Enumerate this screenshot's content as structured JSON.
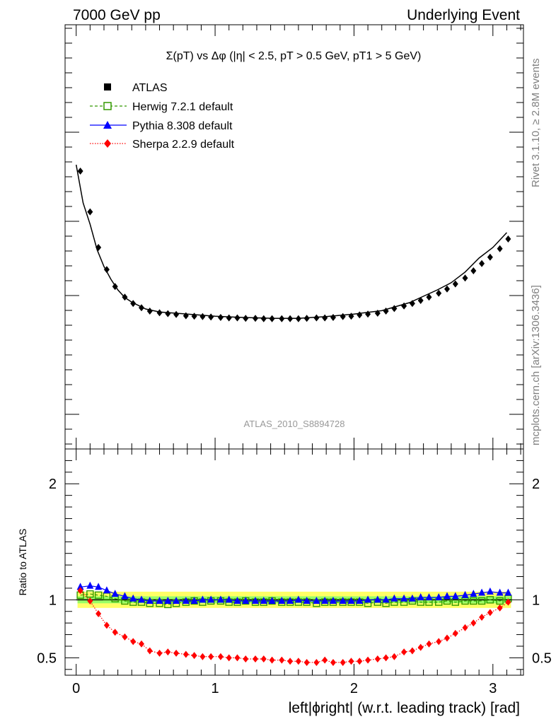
{
  "header": {
    "left": "7000 GeV pp",
    "right": "Underlying Event"
  },
  "side": {
    "rivet": "Rivet 3.1.10, ≥ 2.8M events",
    "mcplots": "mcplots.cern.ch [arXiv:1306.3436]"
  },
  "chart_data": [
    {
      "type": "scatter",
      "title": "Σ(pT) vs Δφ (|η| < 2.5, pT > 0.5 GeV, pT1 > 5 GeV)",
      "watermark": "ATLAS_2010_S8894728",
      "xlim": [
        -0.08,
        3.22
      ],
      "ylim": [
        0,
        1
      ],
      "y_tick_labels_shown": false,
      "legend": [
        "ATLAS",
        "Herwig 7.2.1 default",
        "Pythia 8.308 default",
        "Sherpa 2.2.9 default"
      ],
      "legend_position": "top-left",
      "series": [
        {
          "name": "ATLAS",
          "marker": "diamond",
          "color": "#000000",
          "x": [
            0.03,
            0.1,
            0.16,
            0.22,
            0.28,
            0.35,
            0.41,
            0.47,
            0.53,
            0.6,
            0.66,
            0.72,
            0.79,
            0.85,
            0.91,
            0.97,
            1.04,
            1.1,
            1.16,
            1.22,
            1.29,
            1.35,
            1.41,
            1.48,
            1.54,
            1.6,
            1.66,
            1.73,
            1.79,
            1.85,
            1.92,
            1.98,
            2.04,
            2.1,
            2.17,
            2.23,
            2.29,
            2.36,
            2.42,
            2.48,
            2.54,
            2.61,
            2.67,
            2.73,
            2.8,
            2.86,
            2.92,
            2.98,
            3.05,
            3.11
          ],
          "y": [
            0.655,
            0.559,
            0.475,
            0.423,
            0.383,
            0.358,
            0.343,
            0.333,
            0.325,
            0.321,
            0.319,
            0.317,
            0.314,
            0.313,
            0.312,
            0.311,
            0.31,
            0.309,
            0.309,
            0.308,
            0.308,
            0.307,
            0.307,
            0.307,
            0.307,
            0.307,
            0.308,
            0.309,
            0.309,
            0.31,
            0.312,
            0.313,
            0.316,
            0.318,
            0.32,
            0.325,
            0.331,
            0.337,
            0.343,
            0.35,
            0.358,
            0.367,
            0.377,
            0.389,
            0.403,
            0.42,
            0.437,
            0.452,
            0.472,
            0.495
          ]
        },
        {
          "name": "Pythia 8.308 default",
          "marker": "line",
          "color": "#000000",
          "x": [
            0.0,
            0.05,
            0.1,
            0.15,
            0.2,
            0.25,
            0.3,
            0.35,
            0.4,
            0.45,
            0.5,
            0.6,
            0.8,
            1.0,
            1.2,
            1.4,
            1.6,
            1.8,
            2.0,
            2.2,
            2.4,
            2.5,
            2.6,
            2.7,
            2.8,
            2.9,
            3.0,
            3.1
          ],
          "y": [
            0.67,
            0.58,
            0.53,
            0.47,
            0.43,
            0.4,
            0.375,
            0.357,
            0.346,
            0.338,
            0.33,
            0.323,
            0.318,
            0.313,
            0.31,
            0.308,
            0.308,
            0.312,
            0.318,
            0.326,
            0.345,
            0.36,
            0.375,
            0.392,
            0.417,
            0.45,
            0.475,
            0.51
          ]
        }
      ]
    },
    {
      "type": "scatter",
      "ylabel": "Ratio to ATLAS",
      "xlabel": "left|ϕright| (w.r.t. leading track) [rad]",
      "xlim": [
        -0.08,
        3.22
      ],
      "ylim": [
        0.35,
        2.3
      ],
      "x_ticks": [
        0,
        1,
        2,
        3
      ],
      "y_ticks": [
        0.5,
        1,
        2
      ],
      "reference_line": 1,
      "bands": [
        {
          "name": "outer",
          "low": 0.93,
          "high": 1.07,
          "color": "#ffff66"
        },
        {
          "name": "inner",
          "low": 0.97,
          "high": 1.03,
          "color": "#99ff66"
        }
      ],
      "series": [
        {
          "name": "Herwig 7.2.1 default",
          "marker": "open-square",
          "line": "dashed",
          "color": "#339900",
          "x": [
            0.03,
            0.1,
            0.16,
            0.22,
            0.28,
            0.35,
            0.41,
            0.47,
            0.53,
            0.6,
            0.66,
            0.72,
            0.79,
            0.85,
            0.91,
            0.97,
            1.04,
            1.1,
            1.16,
            1.22,
            1.29,
            1.35,
            1.41,
            1.48,
            1.54,
            1.6,
            1.66,
            1.73,
            1.79,
            1.85,
            1.92,
            1.98,
            2.04,
            2.1,
            2.17,
            2.23,
            2.29,
            2.36,
            2.42,
            2.48,
            2.54,
            2.61,
            2.67,
            2.73,
            2.8,
            2.86,
            2.92,
            2.98,
            3.05,
            3.11
          ],
          "y": [
            1.04,
            1.05,
            1.04,
            1.03,
            1.01,
            0.99,
            0.98,
            0.98,
            0.97,
            0.97,
            0.96,
            0.97,
            0.98,
            0.99,
            0.98,
            0.99,
            0.99,
            0.98,
            0.98,
            0.99,
            0.98,
            0.98,
            0.99,
            0.98,
            0.98,
            0.98,
            0.98,
            0.97,
            0.98,
            0.98,
            0.98,
            0.98,
            0.98,
            0.97,
            0.98,
            0.97,
            0.98,
            0.98,
            0.99,
            0.98,
            0.98,
            0.98,
            0.99,
            0.98,
            0.99,
            0.99,
            0.99,
            1.0,
            0.99,
            1.01
          ]
        },
        {
          "name": "Pythia 8.308 default",
          "marker": "triangle",
          "line": "solid",
          "color": "#0000ff",
          "x": [
            0.03,
            0.1,
            0.16,
            0.22,
            0.28,
            0.35,
            0.41,
            0.47,
            0.53,
            0.6,
            0.66,
            0.72,
            0.79,
            0.85,
            0.91,
            0.97,
            1.04,
            1.1,
            1.16,
            1.22,
            1.29,
            1.35,
            1.41,
            1.48,
            1.54,
            1.6,
            1.66,
            1.73,
            1.79,
            1.85,
            1.92,
            1.98,
            2.04,
            2.1,
            2.17,
            2.23,
            2.29,
            2.36,
            2.42,
            2.48,
            2.54,
            2.61,
            2.67,
            2.73,
            2.8,
            2.86,
            2.92,
            2.98,
            3.05,
            3.11
          ],
          "y": [
            1.11,
            1.12,
            1.11,
            1.08,
            1.05,
            1.03,
            1.01,
            1.0,
            0.99,
            0.99,
            0.99,
            0.99,
            0.99,
            0.99,
            1.0,
            1.0,
            1.0,
            1.0,
            0.99,
            0.99,
            0.99,
            0.99,
            0.99,
            0.99,
            0.99,
            1.0,
            0.99,
            0.99,
            0.99,
            0.99,
            0.99,
            0.99,
            0.99,
            1.0,
            1.0,
            1.0,
            1.01,
            1.01,
            1.01,
            1.02,
            1.02,
            1.02,
            1.03,
            1.03,
            1.04,
            1.05,
            1.06,
            1.07,
            1.06,
            1.06
          ]
        },
        {
          "name": "Sherpa 2.2.9 default",
          "marker": "diamond",
          "line": "dotted",
          "color": "#ff0000",
          "x": [
            0.03,
            0.1,
            0.16,
            0.22,
            0.28,
            0.35,
            0.41,
            0.47,
            0.53,
            0.6,
            0.66,
            0.72,
            0.79,
            0.85,
            0.91,
            0.97,
            1.04,
            1.1,
            1.16,
            1.22,
            1.29,
            1.35,
            1.41,
            1.48,
            1.54,
            1.6,
            1.66,
            1.73,
            1.79,
            1.85,
            1.92,
            1.98,
            2.04,
            2.1,
            2.17,
            2.23,
            2.29,
            2.36,
            2.42,
            2.48,
            2.54,
            2.61,
            2.67,
            2.73,
            2.8,
            2.86,
            2.92,
            2.98,
            3.05,
            3.11
          ],
          "y": [
            1.08,
            0.99,
            0.88,
            0.78,
            0.72,
            0.68,
            0.64,
            0.62,
            0.56,
            0.54,
            0.55,
            0.54,
            0.53,
            0.52,
            0.51,
            0.51,
            0.51,
            0.5,
            0.5,
            0.49,
            0.49,
            0.49,
            0.48,
            0.48,
            0.47,
            0.47,
            0.46,
            0.46,
            0.48,
            0.46,
            0.46,
            0.47,
            0.47,
            0.48,
            0.49,
            0.5,
            0.51,
            0.55,
            0.56,
            0.59,
            0.62,
            0.64,
            0.67,
            0.71,
            0.76,
            0.8,
            0.85,
            0.89,
            0.93,
            0.98
          ]
        }
      ]
    }
  ]
}
